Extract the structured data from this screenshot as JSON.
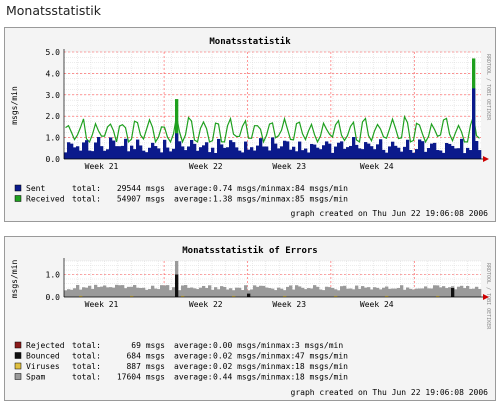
{
  "page": {
    "title": "Monatsstatistik"
  },
  "graphs": [
    {
      "title": "Monatsstatistik",
      "ylabel": "msgs/min",
      "side_label": "RRDTOOL / TOBI OETIKER",
      "yticks": [
        "0.0",
        "1.0",
        "2.0",
        "3.0",
        "4.0",
        "5.0"
      ],
      "xticks": [
        "Week 21",
        "Week 22",
        "Week 23",
        "Week 24"
      ],
      "legend": [
        {
          "color": "#0b1a8c",
          "name": "Sent",
          "total_label": "total:",
          "total": "29544 msgs",
          "average_label": "average:",
          "average": "0.74 msgs/min",
          "max_label": "max:",
          "max": "84 msgs/min"
        },
        {
          "color": "#1fa01f",
          "name": "Received",
          "total_label": "total:",
          "total": "54907 msgs",
          "average_label": "average:",
          "average": "1.38 msgs/min",
          "max_label": "max:",
          "max": "85 msgs/min"
        }
      ],
      "footer": "graph created on Thu Jun 22 19:06:08 2006"
    },
    {
      "title": "Monatsstatistik of Errors",
      "ylabel": "msgs/min",
      "side_label": "RRDTOOL / TOBI OETIKER",
      "yticks": [
        "0.0",
        "1.0"
      ],
      "xticks": [
        "Week 21",
        "Week 22",
        "Week 23",
        "Week 24"
      ],
      "legend": [
        {
          "color": "#8b1a1a",
          "name": "Rejected",
          "total_label": "total:",
          "total": "69 msgs",
          "average_label": "average:",
          "average": "0.00 msgs/min",
          "max_label": "max:",
          "max": "3 msgs/min"
        },
        {
          "color": "#111111",
          "name": "Bounced",
          "total_label": "total:",
          "total": "684 msgs",
          "average_label": "average:",
          "average": "0.02 msgs/min",
          "max_label": "max:",
          "max": "47 msgs/min"
        },
        {
          "color": "#e0c040",
          "name": "Viruses",
          "total_label": "total:",
          "total": "887 msgs",
          "average_label": "average:",
          "average": "0.02 msgs/min",
          "max_label": "max:",
          "max": "18 msgs/min"
        },
        {
          "color": "#9a9a9a",
          "name": "Spam",
          "total_label": "total:",
          "total": "17604 msgs",
          "average_label": "average:",
          "average": "0.44 msgs/min",
          "max_label": "max:",
          "max": "18 msgs/min"
        }
      ],
      "footer": "graph created on Thu Jun 22 19:06:08 2006"
    }
  ],
  "chart_data": [
    {
      "type": "area",
      "title": "Monatsstatistik",
      "ylabel": "msgs/min",
      "ylim": [
        0,
        5
      ],
      "categories": [
        "Week 21",
        "Week 22",
        "Week 23",
        "Week 24"
      ],
      "grid": true,
      "series": [
        {
          "name": "Sent",
          "color": "#0b1a8c",
          "peaks": [
            {
              "week_position": 0.95,
              "value": 1.2
            },
            {
              "week_position": 3.95,
              "value": 3.3
            }
          ]
        },
        {
          "name": "Received",
          "color": "#1fa01f",
          "peaks": [
            {
              "week_position": 0.95,
              "value": 2.8
            },
            {
              "week_position": 3.95,
              "value": 4.7
            }
          ]
        }
      ]
    },
    {
      "type": "area",
      "title": "Monatsstatistik of Errors",
      "ylabel": "msgs/min",
      "ylim": [
        0,
        1.6
      ],
      "categories": [
        "Week 21",
        "Week 22",
        "Week 23",
        "Week 24"
      ],
      "grid": true,
      "series": [
        {
          "name": "Rejected",
          "color": "#8b1a1a"
        },
        {
          "name": "Bounced",
          "color": "#111111"
        },
        {
          "name": "Viruses",
          "color": "#e0c040"
        },
        {
          "name": "Spam",
          "color": "#9a9a9a",
          "peaks": [
            {
              "week_position": 0.95,
              "value": 1.6
            }
          ]
        }
      ]
    }
  ]
}
